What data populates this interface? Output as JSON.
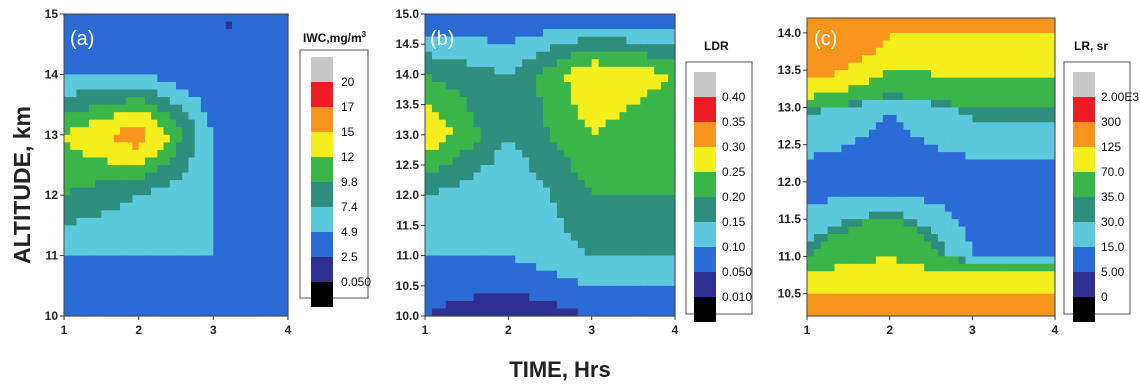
{
  "colors": {
    "black": "#000000",
    "navy": "#2e3192",
    "blue": "#2b6bd6",
    "light_blue": "#5bc8dc",
    "teal": "#2f8f7f",
    "green": "#3ab54a",
    "yellow": "#f4ef1c",
    "orange": "#f7941d",
    "red": "#ed1c24",
    "gray": "#c7c7c7"
  },
  "figure": {
    "ylabel": "ALTITUDE, km",
    "xlabel": "TIME, Hrs"
  },
  "chart_data": [
    {
      "type": "heatmap",
      "panel_label": "(a)",
      "x_ticks": [
        "1",
        "2",
        "3",
        "4"
      ],
      "y_ticks": [
        "10",
        "11",
        "12",
        "13",
        "14",
        "15"
      ],
      "xlim": [
        1,
        4
      ],
      "ylim": [
        10,
        15
      ],
      "legend": {
        "title": "IWC,mg/m",
        "title_sup": "3",
        "levels": [
          "20",
          "17",
          "15",
          "12",
          "9.8",
          "7.4",
          "4.9",
          "2.5",
          "0.050"
        ],
        "colors": [
          "#c7c7c7",
          "#ed1c24",
          "#f7941d",
          "#f4ef1c",
          "#3ab54a",
          "#2f8f7f",
          "#5bc8dc",
          "#2b6bd6",
          "#2e3192",
          "#000000"
        ]
      },
      "x": [
        1,
        2,
        3,
        4
      ],
      "y": [
        10,
        11,
        12,
        13,
        14,
        15
      ],
      "z": [
        [
          2.5,
          2.5,
          2.5,
          2.5
        ],
        [
          4.9,
          4.9,
          4.9,
          2.5
        ],
        [
          9.8,
          7.4,
          4.9,
          2.5
        ],
        [
          12,
          17,
          4.9,
          4.9
        ],
        [
          4.9,
          4.9,
          2.5,
          2.5
        ],
        [
          2.5,
          2.5,
          2.5,
          2.5
        ]
      ]
    },
    {
      "type": "heatmap",
      "panel_label": "(b)",
      "x_ticks": [
        "1",
        "2",
        "3",
        "4"
      ],
      "y_ticks": [
        "10.0",
        "10.5",
        "11.0",
        "11.5",
        "12.0",
        "12.5",
        "13.0",
        "13.5",
        "14.0",
        "14.5",
        "15.0"
      ],
      "xlim": [
        1,
        4
      ],
      "ylim": [
        10,
        15
      ],
      "legend": {
        "title": "LDR",
        "levels": [
          "0.40",
          "0.35",
          "0.30",
          "0.25",
          "0.20",
          "0.15",
          "0.10",
          "0.050",
          "0.010"
        ],
        "colors": [
          "#c7c7c7",
          "#ed1c24",
          "#f7941d",
          "#f4ef1c",
          "#3ab54a",
          "#2f8f7f",
          "#5bc8dc",
          "#2b6bd6",
          "#2e3192",
          "#000000"
        ]
      },
      "x": [
        1,
        2,
        3,
        4
      ],
      "y": [
        10,
        11,
        12,
        13,
        14,
        15
      ],
      "z": [
        [
          0.05,
          0.01,
          0.05,
          0.05
        ],
        [
          0.1,
          0.1,
          0.15,
          0.15
        ],
        [
          0.15,
          0.1,
          0.2,
          0.2
        ],
        [
          0.3,
          0.15,
          0.25,
          0.2
        ],
        [
          0.2,
          0.15,
          0.3,
          0.25
        ],
        [
          0.05,
          0.05,
          0.05,
          0.05
        ]
      ]
    },
    {
      "type": "heatmap",
      "panel_label": "(c)",
      "x_ticks": [
        "1",
        "2",
        "3",
        "4"
      ],
      "y_ticks": [
        "10.5",
        "11.0",
        "11.5",
        "12.0",
        "12.5",
        "13.0",
        "13.5",
        "14.0"
      ],
      "xlim": [
        1,
        4
      ],
      "ylim": [
        10.2,
        14.2
      ],
      "legend": {
        "title": "LR, sr",
        "levels": [
          "2.00E3",
          "300",
          "125",
          "70.0",
          "35.0",
          "30.0",
          "15.0",
          "5.00",
          "0"
        ],
        "colors": [
          "#c7c7c7",
          "#ed1c24",
          "#f7941d",
          "#f4ef1c",
          "#3ab54a",
          "#2f8f7f",
          "#5bc8dc",
          "#2b6bd6",
          "#2e3192",
          "#000000"
        ]
      },
      "x": [
        1,
        2,
        3,
        4
      ],
      "y": [
        10.5,
        11.0,
        12.0,
        13.0,
        14.0
      ],
      "z": [
        [
          125,
          125,
          125,
          125
        ],
        [
          35,
          70,
          15,
          15
        ],
        [
          5,
          5,
          5,
          5
        ],
        [
          35,
          15,
          35,
          35
        ],
        [
          300,
          125,
          125,
          125
        ]
      ]
    }
  ]
}
